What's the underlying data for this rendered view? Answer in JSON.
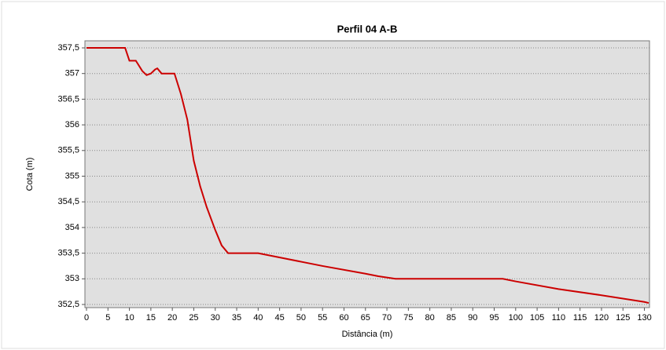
{
  "chart_data": {
    "type": "line",
    "title": "Perfil 04 A-B",
    "xlabel": "Distância (m)",
    "ylabel": "Cota (m)",
    "x": [
      0,
      9,
      10,
      11.5,
      13,
      14,
      15,
      16,
      16.5,
      17.5,
      20.5,
      22,
      23.5,
      25,
      26.5,
      28,
      30,
      31.5,
      33,
      40,
      55,
      65,
      68,
      72,
      97,
      100,
      110,
      120,
      130,
      131
    ],
    "series": [
      {
        "name": "Perfil 04 A-B",
        "color": "#cc0000",
        "values": [
          357.5,
          357.5,
          357.25,
          357.25,
          357.05,
          356.97,
          357.0,
          357.08,
          357.1,
          357.0,
          357.0,
          356.6,
          356.1,
          355.3,
          354.8,
          354.4,
          353.95,
          353.65,
          353.5,
          353.5,
          353.25,
          353.1,
          353.05,
          353.0,
          353.0,
          352.95,
          352.8,
          352.68,
          352.55,
          352.53
        ]
      }
    ],
    "xlim": [
      0,
      131
    ],
    "ylim": [
      352.5,
      357.5
    ],
    "xticks": [
      0,
      5,
      10,
      15,
      20,
      25,
      30,
      35,
      40,
      45,
      50,
      55,
      60,
      65,
      70,
      75,
      80,
      85,
      90,
      95,
      100,
      105,
      110,
      115,
      120,
      125,
      130
    ],
    "yticks": [
      {
        "value": 352.5,
        "label": "352,5"
      },
      353,
      {
        "value": 353.5,
        "label": "353,5"
      },
      354,
      {
        "value": 354.5,
        "label": "354,5"
      },
      355,
      {
        "value": 355.5,
        "label": "355,5"
      },
      356,
      {
        "value": 356.5,
        "label": "356,5"
      },
      357,
      {
        "value": 357.5,
        "label": "357,5"
      }
    ],
    "grid": true
  }
}
